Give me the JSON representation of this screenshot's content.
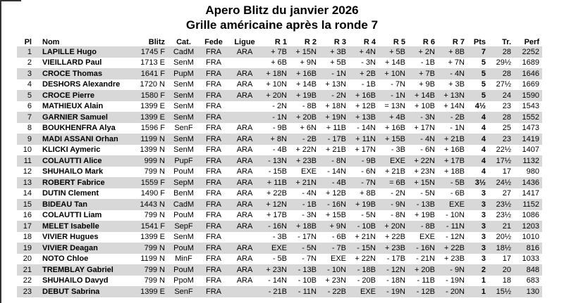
{
  "title": {
    "line1": "Apero Blitz du janvier 2026",
    "line2": "Grille américaine après la ronde 7"
  },
  "colors": {
    "stripe": "#d8d8d8",
    "page_edge": "#333333",
    "text": "#000000"
  },
  "table": {
    "columns": [
      "Pl",
      "Nom",
      "Blitz",
      "Cat.",
      "Fede",
      "Ligue",
      "R 1",
      "R 2",
      "R 3",
      "R 4",
      "R 5",
      "R 6",
      "R 7",
      "Pts",
      "Tr.",
      "Perf"
    ],
    "rows": [
      {
        "pl": "1",
        "nom": "LAPILLE Hugo",
        "blitz": "1745 F",
        "cat": "CadM",
        "fede": "FRA",
        "ligue": "ARA",
        "rounds": [
          "+ 7B",
          "+ 15N",
          "+ 3B",
          "+ 4N",
          "+ 5B",
          "+ 2N",
          "+ 8B"
        ],
        "pts": "7",
        "tr": "28",
        "perf": "2252"
      },
      {
        "pl": "2",
        "nom": "VIEILLARD Paul",
        "blitz": "1713 E",
        "cat": "SenM",
        "fede": "FRA",
        "ligue": "",
        "rounds": [
          "+ 6B",
          "+ 9N",
          "+ 5B",
          "- 3N",
          "+ 14B",
          "- 1B",
          "+ 7N"
        ],
        "pts": "5",
        "tr": "29½",
        "perf": "1689"
      },
      {
        "pl": "3",
        "nom": "CROCE Thomas",
        "blitz": "1641 F",
        "cat": "PupM",
        "fede": "FRA",
        "ligue": "ARA",
        "rounds": [
          "+ 18N",
          "+ 16B",
          "- 1N",
          "+ 2B",
          "+ 10N",
          "+ 7B",
          "- 4N"
        ],
        "pts": "5",
        "tr": "28",
        "perf": "1646"
      },
      {
        "pl": "4",
        "nom": "DESHORS Alexandre",
        "blitz": "1720 N",
        "cat": "SenM",
        "fede": "FRA",
        "ligue": "ARA",
        "rounds": [
          "+ 10N",
          "+ 14B",
          "+ 13N",
          "- 1B",
          "- 7N",
          "+ 9B",
          "+ 3B"
        ],
        "pts": "5",
        "tr": "27½",
        "perf": "1669"
      },
      {
        "pl": "5",
        "nom": "CROCE Pierre",
        "blitz": "1580 F",
        "cat": "SenM",
        "fede": "FRA",
        "ligue": "ARA",
        "rounds": [
          "+ 20N",
          "+ 19B",
          "- 2N",
          "+ 16B",
          "- 1N",
          "+ 14B",
          "+ 13N"
        ],
        "pts": "5",
        "tr": "24",
        "perf": "1590"
      },
      {
        "pl": "6",
        "nom": "MATHIEUX Alain",
        "blitz": "1399 E",
        "cat": "SenM",
        "fede": "FRA",
        "ligue": "",
        "rounds": [
          "- 2N",
          "- 8B",
          "+ 18N",
          "+ 12B",
          "= 13N",
          "+ 10B",
          "+ 14N"
        ],
        "pts": "4½",
        "tr": "23",
        "perf": "1543"
      },
      {
        "pl": "7",
        "nom": "GARNIER Samuel",
        "blitz": "1399 E",
        "cat": "SenM",
        "fede": "FRA",
        "ligue": "",
        "rounds": [
          "- 1N",
          "+ 20B",
          "+ 19N",
          "+ 13B",
          "+ 4B",
          "- 3N",
          "- 2B"
        ],
        "pts": "4",
        "tr": "28",
        "perf": "1552"
      },
      {
        "pl": "8",
        "nom": "BOUKHENFRA Alya",
        "blitz": "1596 F",
        "cat": "SenF",
        "fede": "FRA",
        "ligue": "ARA",
        "rounds": [
          "- 9B",
          "+ 6N",
          "+ 11B",
          "- 14N",
          "+ 16B",
          "+ 17N",
          "- 1N"
        ],
        "pts": "4",
        "tr": "25",
        "perf": "1473"
      },
      {
        "pl": "9",
        "nom": "MADI ASSANI Orhan",
        "blitz": "1199 N",
        "cat": "SenM",
        "fede": "FRA",
        "ligue": "ARA",
        "rounds": [
          "+ 8N",
          "- 2B",
          "- 17B",
          "+ 11N",
          "+ 15B",
          "- 4N",
          "+ 21B"
        ],
        "pts": "4",
        "tr": "23",
        "perf": "1419"
      },
      {
        "pl": "10",
        "nom": "KLICKI Aymeric",
        "blitz": "1399 N",
        "cat": "SenM",
        "fede": "FRA",
        "ligue": "ARA",
        "rounds": [
          "- 4B",
          "+ 22N",
          "+ 21B",
          "+ 17N",
          "- 3B",
          "- 6N",
          "+ 16B"
        ],
        "pts": "4",
        "tr": "22½",
        "perf": "1407"
      },
      {
        "pl": "11",
        "nom": "COLAUTTI Alice",
        "blitz": "999 N",
        "cat": "PupF",
        "fede": "FRA",
        "ligue": "ARA",
        "rounds": [
          "- 13N",
          "+ 23B",
          "- 8N",
          "- 9B",
          "EXE",
          "+ 22N",
          "+ 17B"
        ],
        "pts": "4",
        "tr": "17½",
        "perf": "1132"
      },
      {
        "pl": "12",
        "nom": "SHUHAILO Mark",
        "blitz": "799 N",
        "cat": "PouM",
        "fede": "FRA",
        "ligue": "ARA",
        "rounds": [
          "- 15B",
          "EXE",
          "- 14N",
          "- 6N",
          "+ 21B",
          "+ 23N",
          "+ 18B"
        ],
        "pts": "4",
        "tr": "17",
        "perf": "980"
      },
      {
        "pl": "13",
        "nom": "ROBERT Fabrice",
        "blitz": "1559 F",
        "cat": "SepM",
        "fede": "FRA",
        "ligue": "ARA",
        "rounds": [
          "+ 11B",
          "+ 21N",
          "- 4B",
          "- 7N",
          "= 6B",
          "+ 15N",
          "- 5B"
        ],
        "pts": "3½",
        "tr": "24½",
        "perf": "1436"
      },
      {
        "pl": "14",
        "nom": "DUTIN Clement",
        "blitz": "1490 F",
        "cat": "BenM",
        "fede": "FRA",
        "ligue": "ARA",
        "rounds": [
          "+ 22B",
          "- 4N",
          "+ 12B",
          "+ 8B",
          "- 2N",
          "- 5N",
          "- 6B"
        ],
        "pts": "3",
        "tr": "27",
        "perf": "1417"
      },
      {
        "pl": "15",
        "nom": "BIDEAU Tan",
        "blitz": "1443 N",
        "cat": "CadM",
        "fede": "FRA",
        "ligue": "ARA",
        "rounds": [
          "+ 12N",
          "- 1B",
          "- 16N",
          "+ 19B",
          "- 9N",
          "- 13B",
          "EXE"
        ],
        "pts": "3",
        "tr": "23½",
        "perf": "1152"
      },
      {
        "pl": "16",
        "nom": "COLAUTTI Liam",
        "blitz": "799 N",
        "cat": "PouM",
        "fede": "FRA",
        "ligue": "ARA",
        "rounds": [
          "+ 17B",
          "- 3N",
          "+ 15B",
          "- 5N",
          "- 8N",
          "+ 19B",
          "- 10N"
        ],
        "pts": "3",
        "tr": "23½",
        "perf": "1086"
      },
      {
        "pl": "17",
        "nom": "MELET Isabelle",
        "blitz": "1541 F",
        "cat": "SepF",
        "fede": "FRA",
        "ligue": "ARA",
        "rounds": [
          "- 16N",
          "+ 18B",
          "+ 9N",
          "- 10B",
          "+ 20N",
          "- 8B",
          "- 11N"
        ],
        "pts": "3",
        "tr": "21",
        "perf": "1203"
      },
      {
        "pl": "18",
        "nom": "VIVIER Hugues",
        "blitz": "1399 E",
        "cat": "SenM",
        "fede": "FRA",
        "ligue": "",
        "rounds": [
          "- 3B",
          "- 17N",
          "- 6B",
          "+ 21N",
          "+ 22B",
          "EXE",
          "- 12N"
        ],
        "pts": "3",
        "tr": "20½",
        "perf": "1010"
      },
      {
        "pl": "19",
        "nom": "VIVIER Deagan",
        "blitz": "799 N",
        "cat": "PouM",
        "fede": "FRA",
        "ligue": "ARA",
        "rounds": [
          "EXE",
          "- 5N",
          "- 7B",
          "- 15N",
          "+ 23B",
          "- 16N",
          "+ 22B"
        ],
        "pts": "3",
        "tr": "18½",
        "perf": "816"
      },
      {
        "pl": "20",
        "nom": "NOTO Chloe",
        "blitz": "1199 N",
        "cat": "MinF",
        "fede": "FRA",
        "ligue": "ARA",
        "rounds": [
          "- 5B",
          "- 7N",
          "EXE",
          "+ 22N",
          "- 17B",
          "- 21N",
          "+ 23B"
        ],
        "pts": "3",
        "tr": "17",
        "perf": "1033"
      },
      {
        "pl": "21",
        "nom": "TREMBLAY Gabriel",
        "blitz": "799 N",
        "cat": "PouM",
        "fede": "FRA",
        "ligue": "ARA",
        "rounds": [
          "+ 23N",
          "- 13B",
          "- 10N",
          "- 18B",
          "- 12N",
          "+ 20B",
          "- 9N"
        ],
        "pts": "2",
        "tr": "20",
        "perf": "848"
      },
      {
        "pl": "22",
        "nom": "SHUHAILO Davyd",
        "blitz": "799 N",
        "cat": "PpoM",
        "fede": "FRA",
        "ligue": "ARA",
        "rounds": [
          "- 14N",
          "- 10B",
          "+ 23N",
          "- 20B",
          "- 18N",
          "- 11B",
          "- 19N"
        ],
        "pts": "1",
        "tr": "18",
        "perf": "683"
      },
      {
        "pl": "23",
        "nom": "DEBUT Sabrina",
        "blitz": "1399 E",
        "cat": "SenF",
        "fede": "FRA",
        "ligue": "",
        "rounds": [
          "- 21B",
          "- 11N",
          "- 22B",
          "EXE",
          "- 19N",
          "- 12B",
          "- 20N"
        ],
        "pts": "1",
        "tr": "15½",
        "perf": "130"
      }
    ]
  }
}
